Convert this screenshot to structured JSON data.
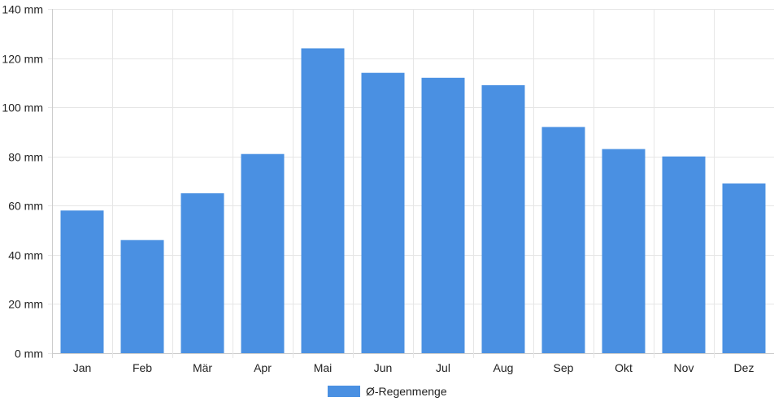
{
  "chart_data": {
    "type": "bar",
    "categories": [
      "Jan",
      "Feb",
      "Mär",
      "Apr",
      "Mai",
      "Jun",
      "Jul",
      "Aug",
      "Sep",
      "Okt",
      "Nov",
      "Dez"
    ],
    "series": [
      {
        "name": "Ø-Regenmenge",
        "values": [
          58,
          46,
          65,
          81,
          124,
          114,
          112,
          109,
          92,
          83,
          80,
          69
        ],
        "color": "#4a90e2"
      }
    ],
    "ylim": [
      0,
      140
    ],
    "yticks": [
      0,
      20,
      40,
      60,
      80,
      100,
      120,
      140
    ],
    "y_unit": "mm",
    "grid": true,
    "legend_position": "bottom-center",
    "grid_color": "#e6e6e6",
    "axis_color": "#cccccc",
    "text_color": "#222222"
  }
}
